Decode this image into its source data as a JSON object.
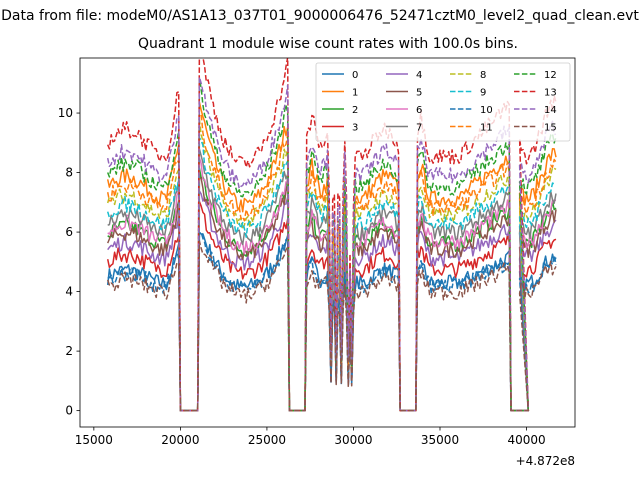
{
  "suptitle": "Data from file: modeM0/AS1A13_037T01_9000006476_52471cztM0_level2_quad_clean.evt",
  "chart_data": {
    "type": "line",
    "title": "Quadrant 1 module wise count rates with 100.0s bins.",
    "xlabel": "",
    "ylabel": "",
    "x_offset_label": "+4.872e8",
    "xlim": [
      14200,
      42800
    ],
    "ylim": [
      -0.55,
      11.85
    ],
    "xticks": [
      15000,
      20000,
      25000,
      30000,
      35000,
      40000
    ],
    "xtick_labels": [
      "15000",
      "20000",
      "25000",
      "30000",
      "35000",
      "40000"
    ],
    "yticks": [
      0,
      2,
      4,
      6,
      8,
      10
    ],
    "ytick_labels": [
      "0",
      "2",
      "4",
      "6",
      "8",
      "10"
    ],
    "grid": false,
    "legend_position": "top-right",
    "legend_columns": 4,
    "segments": [
      {
        "x": [
          15800,
          19900
        ],
        "dip_x": null
      },
      {
        "x": [
          21100,
          26200
        ],
        "dip_x": null
      },
      {
        "x": [
          27300,
          32600
        ],
        "dip_x": [
          28700,
          29000,
          29300,
          29700,
          29900
        ]
      },
      {
        "x": [
          33700,
          39000
        ],
        "dip_x": null
      },
      {
        "x": [
          39600,
          41700
        ],
        "dip_x": null
      }
    ],
    "gaps": [
      {
        "x": [
          20000,
          21000
        ],
        "value": 0
      },
      {
        "x": [
          26300,
          27200
        ],
        "value": 0
      },
      {
        "x": [
          32700,
          33600
        ],
        "value": 0
      },
      {
        "x": [
          39100,
          40100
        ],
        "value": 0
      }
    ],
    "series": [
      {
        "name": "0",
        "color": "#1f77b4",
        "dash": "solid",
        "mean": 4.5
      },
      {
        "name": "1",
        "color": "#ff7f0e",
        "dash": "solid",
        "mean": 7.5
      },
      {
        "name": "2",
        "color": "#2ca02c",
        "dash": "solid",
        "mean": 5.9
      },
      {
        "name": "3",
        "color": "#d62728",
        "dash": "solid",
        "mean": 5.0
      },
      {
        "name": "4",
        "color": "#9467bd",
        "dash": "solid",
        "mean": 5.4
      },
      {
        "name": "5",
        "color": "#8c564b",
        "dash": "solid",
        "mean": 5.7
      },
      {
        "name": "6",
        "color": "#e377c2",
        "dash": "solid",
        "mean": 6.0
      },
      {
        "name": "7",
        "color": "#7f7f7f",
        "dash": "solid",
        "mean": 6.3
      },
      {
        "name": "8",
        "color": "#bcbd22",
        "dash": "dashed",
        "mean": 6.9
      },
      {
        "name": "9",
        "color": "#17becf",
        "dash": "dashed",
        "mean": 6.6
      },
      {
        "name": "10",
        "color": "#1f77b4",
        "dash": "dashed",
        "mean": 4.4
      },
      {
        "name": "11",
        "color": "#ff7f0e",
        "dash": "dashed",
        "mean": 7.2
      },
      {
        "name": "12",
        "color": "#2ca02c",
        "dash": "dashed",
        "mean": 7.9
      },
      {
        "name": "13",
        "color": "#d62728",
        "dash": "dashed",
        "mean": 9.0
      },
      {
        "name": "14",
        "color": "#9467bd",
        "dash": "dashed",
        "mean": 8.3
      },
      {
        "name": "15",
        "color": "#8c564b",
        "dash": "dashed",
        "mean": 4.2
      }
    ]
  }
}
